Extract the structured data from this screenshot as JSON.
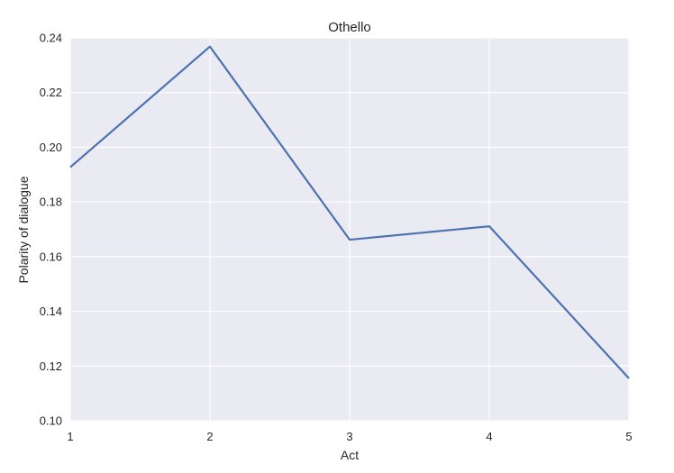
{
  "chart_data": {
    "type": "line",
    "title": "Othello",
    "xlabel": "Act",
    "ylabel": "Polarity of dialogue",
    "x": [
      1,
      2,
      3,
      4,
      5
    ],
    "xticks": [
      "1",
      "2",
      "3",
      "4",
      "5"
    ],
    "yticks": [
      "0.10",
      "0.12",
      "0.14",
      "0.16",
      "0.18",
      "0.20",
      "0.22",
      "0.24"
    ],
    "xlim": [
      1,
      5
    ],
    "ylim": [
      0.1,
      0.24
    ],
    "grid": true,
    "series": [
      {
        "values": [
          0.1927,
          0.2368,
          0.1662,
          0.1711,
          0.1155
        ]
      }
    ],
    "colors": {
      "line": "#4c72b0",
      "background": "#eaeaf2",
      "grid": "#ffffff"
    }
  }
}
